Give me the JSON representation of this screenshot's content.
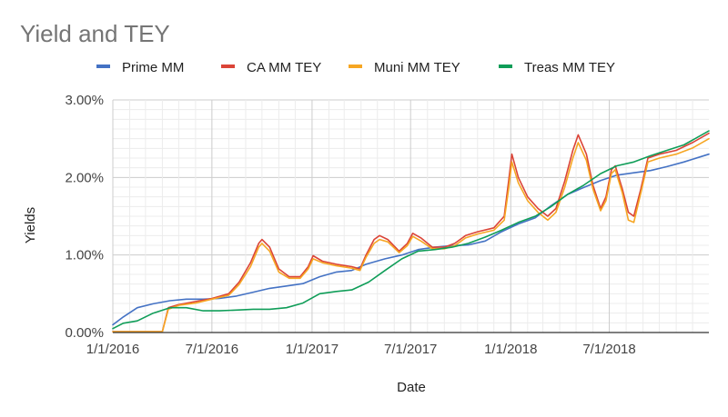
{
  "chart_data": {
    "type": "line",
    "title": "Yield and TEY",
    "xlabel": "Date",
    "ylabel": "Yields",
    "x_tick_labels": [
      "1/1/2016",
      "7/1/2016",
      "1/1/2017",
      "7/1/2017",
      "1/1/2018",
      "7/1/2018"
    ],
    "y_tick_labels": [
      "0.00%",
      "1.00%",
      "2.00%",
      "3.00%"
    ],
    "ylim": [
      0,
      3
    ],
    "xlim": [
      "2016-01-01",
      "2018-12-31"
    ],
    "grid": true,
    "legend_position": "top",
    "series": [
      {
        "name": "Prime MM",
        "color": "#4472c4",
        "points": [
          [
            "2016-01-01",
            0.1
          ],
          [
            "2016-01-20",
            0.2
          ],
          [
            "2016-02-15",
            0.32
          ],
          [
            "2016-03-15",
            0.37
          ],
          [
            "2016-04-15",
            0.41
          ],
          [
            "2016-05-15",
            0.43
          ],
          [
            "2016-06-15",
            0.43
          ],
          [
            "2016-07-15",
            0.44
          ],
          [
            "2016-08-15",
            0.47
          ],
          [
            "2016-09-15",
            0.52
          ],
          [
            "2016-10-15",
            0.57
          ],
          [
            "2016-11-15",
            0.6
          ],
          [
            "2016-12-15",
            0.63
          ],
          [
            "2017-01-15",
            0.72
          ],
          [
            "2017-02-15",
            0.78
          ],
          [
            "2017-03-15",
            0.8
          ],
          [
            "2017-04-10",
            0.88
          ],
          [
            "2017-05-15",
            0.95
          ],
          [
            "2017-06-15",
            1.0
          ],
          [
            "2017-07-15",
            1.07
          ],
          [
            "2017-08-15",
            1.1
          ],
          [
            "2017-09-15",
            1.12
          ],
          [
            "2017-10-15",
            1.13
          ],
          [
            "2017-11-15",
            1.18
          ],
          [
            "2017-12-15",
            1.3
          ],
          [
            "2018-01-15",
            1.4
          ],
          [
            "2018-02-15",
            1.48
          ],
          [
            "2018-03-15",
            1.63
          ],
          [
            "2018-04-15",
            1.78
          ],
          [
            "2018-05-15",
            1.87
          ],
          [
            "2018-06-15",
            1.96
          ],
          [
            "2018-07-15",
            2.03
          ],
          [
            "2018-08-15",
            2.06
          ],
          [
            "2018-09-15",
            2.09
          ],
          [
            "2018-10-15",
            2.14
          ],
          [
            "2018-11-15",
            2.2
          ],
          [
            "2018-12-31",
            2.3
          ]
        ]
      },
      {
        "name": "CA MM TEY",
        "color": "#db4437",
        "points": [
          [
            "2016-01-01",
            0.01
          ],
          [
            "2016-03-10",
            0.01
          ],
          [
            "2016-04-01",
            0.01
          ],
          [
            "2016-04-12",
            0.32
          ],
          [
            "2016-05-01",
            0.36
          ],
          [
            "2016-06-01",
            0.4
          ],
          [
            "2016-07-01",
            0.44
          ],
          [
            "2016-08-01",
            0.5
          ],
          [
            "2016-08-20",
            0.65
          ],
          [
            "2016-09-10",
            0.9
          ],
          [
            "2016-09-25",
            1.15
          ],
          [
            "2016-10-01",
            1.2
          ],
          [
            "2016-10-15",
            1.1
          ],
          [
            "2016-11-01",
            0.82
          ],
          [
            "2016-11-20",
            0.72
          ],
          [
            "2016-12-10",
            0.72
          ],
          [
            "2016-12-25",
            0.85
          ],
          [
            "2017-01-03",
            0.99
          ],
          [
            "2017-01-20",
            0.92
          ],
          [
            "2017-02-15",
            0.88
          ],
          [
            "2017-03-15",
            0.85
          ],
          [
            "2017-03-30",
            0.82
          ],
          [
            "2017-04-10",
            1.0
          ],
          [
            "2017-04-25",
            1.2
          ],
          [
            "2017-05-05",
            1.25
          ],
          [
            "2017-05-20",
            1.2
          ],
          [
            "2017-06-10",
            1.05
          ],
          [
            "2017-06-25",
            1.15
          ],
          [
            "2017-07-05",
            1.28
          ],
          [
            "2017-07-20",
            1.22
          ],
          [
            "2017-08-10",
            1.1
          ],
          [
            "2017-09-01",
            1.1
          ],
          [
            "2017-09-20",
            1.15
          ],
          [
            "2017-10-10",
            1.25
          ],
          [
            "2017-11-01",
            1.3
          ],
          [
            "2017-12-01",
            1.35
          ],
          [
            "2017-12-20",
            1.5
          ],
          [
            "2017-12-28",
            1.95
          ],
          [
            "2018-01-03",
            2.3
          ],
          [
            "2018-01-15",
            2.0
          ],
          [
            "2018-02-01",
            1.75
          ],
          [
            "2018-02-20",
            1.6
          ],
          [
            "2018-03-10",
            1.5
          ],
          [
            "2018-03-25",
            1.6
          ],
          [
            "2018-04-10",
            1.95
          ],
          [
            "2018-04-25",
            2.35
          ],
          [
            "2018-05-05",
            2.55
          ],
          [
            "2018-05-20",
            2.3
          ],
          [
            "2018-06-01",
            1.9
          ],
          [
            "2018-06-15",
            1.6
          ],
          [
            "2018-06-25",
            1.75
          ],
          [
            "2018-07-05",
            2.1
          ],
          [
            "2018-07-12",
            2.15
          ],
          [
            "2018-07-25",
            1.85
          ],
          [
            "2018-08-05",
            1.55
          ],
          [
            "2018-08-15",
            1.5
          ],
          [
            "2018-08-28",
            1.85
          ],
          [
            "2018-09-10",
            2.25
          ],
          [
            "2018-10-01",
            2.3
          ],
          [
            "2018-11-01",
            2.35
          ],
          [
            "2018-12-01",
            2.45
          ],
          [
            "2018-12-31",
            2.57
          ]
        ]
      },
      {
        "name": "Muni MM TEY",
        "color": "#f6a623",
        "points": [
          [
            "2016-01-01",
            0.01
          ],
          [
            "2016-03-10",
            0.01
          ],
          [
            "2016-04-01",
            0.01
          ],
          [
            "2016-04-12",
            0.3
          ],
          [
            "2016-05-01",
            0.35
          ],
          [
            "2016-06-01",
            0.38
          ],
          [
            "2016-07-01",
            0.43
          ],
          [
            "2016-08-01",
            0.48
          ],
          [
            "2016-08-20",
            0.62
          ],
          [
            "2016-09-10",
            0.85
          ],
          [
            "2016-09-25",
            1.1
          ],
          [
            "2016-10-01",
            1.15
          ],
          [
            "2016-10-15",
            1.05
          ],
          [
            "2016-11-01",
            0.78
          ],
          [
            "2016-11-20",
            0.7
          ],
          [
            "2016-12-10",
            0.7
          ],
          [
            "2016-12-25",
            0.82
          ],
          [
            "2017-01-03",
            0.95
          ],
          [
            "2017-01-20",
            0.9
          ],
          [
            "2017-02-15",
            0.86
          ],
          [
            "2017-03-15",
            0.83
          ],
          [
            "2017-03-30",
            0.8
          ],
          [
            "2017-04-10",
            0.97
          ],
          [
            "2017-04-25",
            1.15
          ],
          [
            "2017-05-05",
            1.2
          ],
          [
            "2017-05-20",
            1.17
          ],
          [
            "2017-06-10",
            1.03
          ],
          [
            "2017-06-25",
            1.12
          ],
          [
            "2017-07-05",
            1.24
          ],
          [
            "2017-07-20",
            1.18
          ],
          [
            "2017-08-10",
            1.08
          ],
          [
            "2017-09-01",
            1.08
          ],
          [
            "2017-09-20",
            1.12
          ],
          [
            "2017-10-10",
            1.22
          ],
          [
            "2017-11-01",
            1.27
          ],
          [
            "2017-12-01",
            1.32
          ],
          [
            "2017-12-20",
            1.45
          ],
          [
            "2017-12-28",
            1.85
          ],
          [
            "2018-01-03",
            2.2
          ],
          [
            "2018-01-15",
            1.93
          ],
          [
            "2018-02-01",
            1.7
          ],
          [
            "2018-02-20",
            1.55
          ],
          [
            "2018-03-10",
            1.45
          ],
          [
            "2018-03-25",
            1.55
          ],
          [
            "2018-04-10",
            1.87
          ],
          [
            "2018-04-25",
            2.25
          ],
          [
            "2018-05-05",
            2.45
          ],
          [
            "2018-05-20",
            2.22
          ],
          [
            "2018-06-01",
            1.85
          ],
          [
            "2018-06-15",
            1.57
          ],
          [
            "2018-06-25",
            1.7
          ],
          [
            "2018-07-05",
            2.05
          ],
          [
            "2018-07-12",
            2.1
          ],
          [
            "2018-07-25",
            1.8
          ],
          [
            "2018-08-05",
            1.45
          ],
          [
            "2018-08-15",
            1.42
          ],
          [
            "2018-08-28",
            1.8
          ],
          [
            "2018-09-10",
            2.2
          ],
          [
            "2018-10-01",
            2.25
          ],
          [
            "2018-11-01",
            2.3
          ],
          [
            "2018-12-01",
            2.38
          ],
          [
            "2018-12-31",
            2.5
          ]
        ]
      },
      {
        "name": "Treas MM TEY",
        "color": "#0f9d58",
        "points": [
          [
            "2016-01-01",
            0.05
          ],
          [
            "2016-01-20",
            0.12
          ],
          [
            "2016-02-15",
            0.15
          ],
          [
            "2016-03-15",
            0.25
          ],
          [
            "2016-04-15",
            0.32
          ],
          [
            "2016-05-15",
            0.32
          ],
          [
            "2016-06-15",
            0.28
          ],
          [
            "2016-07-15",
            0.28
          ],
          [
            "2016-08-15",
            0.29
          ],
          [
            "2016-09-15",
            0.3
          ],
          [
            "2016-10-15",
            0.3
          ],
          [
            "2016-11-15",
            0.32
          ],
          [
            "2016-12-15",
            0.38
          ],
          [
            "2017-01-15",
            0.5
          ],
          [
            "2017-02-15",
            0.53
          ],
          [
            "2017-03-15",
            0.55
          ],
          [
            "2017-04-15",
            0.65
          ],
          [
            "2017-05-15",
            0.8
          ],
          [
            "2017-06-15",
            0.95
          ],
          [
            "2017-07-15",
            1.05
          ],
          [
            "2017-08-15",
            1.07
          ],
          [
            "2017-09-15",
            1.1
          ],
          [
            "2017-10-15",
            1.15
          ],
          [
            "2017-11-15",
            1.23
          ],
          [
            "2017-12-15",
            1.32
          ],
          [
            "2018-01-15",
            1.42
          ],
          [
            "2018-02-15",
            1.5
          ],
          [
            "2018-03-15",
            1.62
          ],
          [
            "2018-04-15",
            1.78
          ],
          [
            "2018-05-15",
            1.9
          ],
          [
            "2018-06-15",
            2.05
          ],
          [
            "2018-07-15",
            2.15
          ],
          [
            "2018-08-15",
            2.2
          ],
          [
            "2018-09-15",
            2.28
          ],
          [
            "2018-10-15",
            2.35
          ],
          [
            "2018-11-15",
            2.42
          ],
          [
            "2018-12-31",
            2.6
          ]
        ]
      }
    ]
  }
}
